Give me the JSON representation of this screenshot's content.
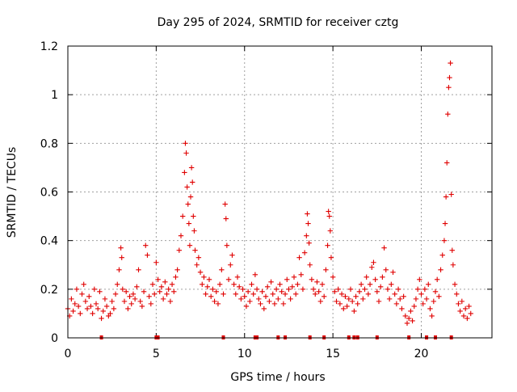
{
  "chart_data": {
    "type": "scatter",
    "title": "Day 295 of 2024, SRMTID for receiver cztg",
    "xlabel": "GPS time / hours",
    "ylabel": "SRMTID / TECUs",
    "xlim": [
      0,
      24
    ],
    "ylim": [
      0,
      1.2
    ],
    "x_ticks": [
      0,
      5,
      10,
      15,
      20
    ],
    "y_ticks": [
      0,
      0.2,
      0.4,
      0.6,
      0.8,
      1,
      1.2
    ],
    "x_tick_labels": [
      "0",
      "5",
      "10",
      "15",
      "20"
    ],
    "y_tick_labels": [
      "0",
      "0.2",
      "0.4",
      "0.6",
      "0.8",
      "1",
      "1.2"
    ],
    "grid": true,
    "marker": "+",
    "color": "#e00000",
    "series": [
      {
        "name": "SRMTID",
        "points": [
          [
            0.0,
            0.12
          ],
          [
            0.1,
            0.09
          ],
          [
            0.2,
            0.16
          ],
          [
            0.3,
            0.11
          ],
          [
            0.4,
            0.14
          ],
          [
            0.5,
            0.2
          ],
          [
            0.6,
            0.13
          ],
          [
            0.7,
            0.1
          ],
          [
            0.8,
            0.18
          ],
          [
            0.9,
            0.22
          ],
          [
            1.0,
            0.15
          ],
          [
            1.1,
            0.12
          ],
          [
            1.2,
            0.17
          ],
          [
            1.3,
            0.13
          ],
          [
            1.4,
            0.1
          ],
          [
            1.5,
            0.2
          ],
          [
            1.6,
            0.14
          ],
          [
            1.7,
            0.12
          ],
          [
            1.8,
            0.19
          ],
          [
            1.9,
            0.08
          ],
          [
            2.0,
            0.11
          ],
          [
            2.1,
            0.16
          ],
          [
            2.2,
            0.13
          ],
          [
            2.3,
            0.09
          ],
          [
            2.4,
            0.1
          ],
          [
            2.5,
            0.15
          ],
          [
            2.6,
            0.12
          ],
          [
            2.7,
            0.18
          ],
          [
            2.8,
            0.22
          ],
          [
            2.9,
            0.28
          ],
          [
            3.0,
            0.37
          ],
          [
            3.05,
            0.33
          ],
          [
            3.1,
            0.2
          ],
          [
            3.2,
            0.15
          ],
          [
            3.3,
            0.19
          ],
          [
            3.4,
            0.12
          ],
          [
            3.5,
            0.17
          ],
          [
            3.6,
            0.14
          ],
          [
            3.7,
            0.18
          ],
          [
            3.8,
            0.16
          ],
          [
            3.9,
            0.21
          ],
          [
            4.0,
            0.28
          ],
          [
            4.1,
            0.15
          ],
          [
            4.2,
            0.13
          ],
          [
            4.3,
            0.19
          ],
          [
            4.4,
            0.38
          ],
          [
            4.5,
            0.34
          ],
          [
            4.6,
            0.17
          ],
          [
            4.7,
            0.14
          ],
          [
            4.8,
            0.22
          ],
          [
            4.9,
            0.18
          ],
          [
            5.0,
            0.31
          ],
          [
            5.1,
            0.24
          ],
          [
            5.2,
            0.19
          ],
          [
            5.3,
            0.21
          ],
          [
            5.4,
            0.16
          ],
          [
            5.5,
            0.23
          ],
          [
            5.6,
            0.18
          ],
          [
            5.7,
            0.2
          ],
          [
            5.8,
            0.15
          ],
          [
            5.9,
            0.22
          ],
          [
            6.0,
            0.19
          ],
          [
            6.1,
            0.25
          ],
          [
            6.2,
            0.28
          ],
          [
            6.3,
            0.36
          ],
          [
            6.4,
            0.42
          ],
          [
            6.5,
            0.5
          ],
          [
            6.6,
            0.68
          ],
          [
            6.65,
            0.8
          ],
          [
            6.7,
            0.76
          ],
          [
            6.75,
            0.62
          ],
          [
            6.8,
            0.55
          ],
          [
            6.85,
            0.47
          ],
          [
            6.9,
            0.38
          ],
          [
            6.95,
            0.58
          ],
          [
            7.0,
            0.7
          ],
          [
            7.05,
            0.64
          ],
          [
            7.1,
            0.5
          ],
          [
            7.15,
            0.44
          ],
          [
            7.2,
            0.36
          ],
          [
            7.3,
            0.3
          ],
          [
            7.4,
            0.33
          ],
          [
            7.5,
            0.27
          ],
          [
            7.6,
            0.22
          ],
          [
            7.7,
            0.25
          ],
          [
            7.8,
            0.18
          ],
          [
            7.9,
            0.21
          ],
          [
            8.0,
            0.24
          ],
          [
            8.1,
            0.17
          ],
          [
            8.2,
            0.2
          ],
          [
            8.3,
            0.15
          ],
          [
            8.4,
            0.19
          ],
          [
            8.5,
            0.14
          ],
          [
            8.6,
            0.22
          ],
          [
            8.7,
            0.28
          ],
          [
            8.8,
            0.18
          ],
          [
            8.9,
            0.55
          ],
          [
            8.95,
            0.49
          ],
          [
            9.0,
            0.38
          ],
          [
            9.1,
            0.24
          ],
          [
            9.2,
            0.3
          ],
          [
            9.3,
            0.34
          ],
          [
            9.4,
            0.22
          ],
          [
            9.5,
            0.18
          ],
          [
            9.6,
            0.25
          ],
          [
            9.7,
            0.21
          ],
          [
            9.8,
            0.16
          ],
          [
            9.9,
            0.2
          ],
          [
            10.0,
            0.17
          ],
          [
            10.1,
            0.13
          ],
          [
            10.2,
            0.19
          ],
          [
            10.3,
            0.15
          ],
          [
            10.4,
            0.22
          ],
          [
            10.5,
            0.18
          ],
          [
            10.6,
            0.26
          ],
          [
            10.7,
            0.2
          ],
          [
            10.8,
            0.16
          ],
          [
            10.9,
            0.14
          ],
          [
            11.0,
            0.19
          ],
          [
            11.1,
            0.12
          ],
          [
            11.2,
            0.17
          ],
          [
            11.3,
            0.21
          ],
          [
            11.4,
            0.15
          ],
          [
            11.5,
            0.23
          ],
          [
            11.6,
            0.18
          ],
          [
            11.7,
            0.14
          ],
          [
            11.8,
            0.2
          ],
          [
            11.9,
            0.16
          ],
          [
            12.0,
            0.22
          ],
          [
            12.1,
            0.19
          ],
          [
            12.2,
            0.14
          ],
          [
            12.3,
            0.18
          ],
          [
            12.4,
            0.24
          ],
          [
            12.5,
            0.2
          ],
          [
            12.6,
            0.16
          ],
          [
            12.7,
            0.21
          ],
          [
            12.8,
            0.25
          ],
          [
            12.9,
            0.18
          ],
          [
            13.0,
            0.22
          ],
          [
            13.1,
            0.33
          ],
          [
            13.2,
            0.26
          ],
          [
            13.3,
            0.2
          ],
          [
            13.4,
            0.35
          ],
          [
            13.5,
            0.42
          ],
          [
            13.55,
            0.51
          ],
          [
            13.6,
            0.47
          ],
          [
            13.65,
            0.39
          ],
          [
            13.7,
            0.3
          ],
          [
            13.8,
            0.24
          ],
          [
            13.9,
            0.2
          ],
          [
            14.0,
            0.18
          ],
          [
            14.1,
            0.23
          ],
          [
            14.2,
            0.19
          ],
          [
            14.3,
            0.15
          ],
          [
            14.4,
            0.22
          ],
          [
            14.5,
            0.17
          ],
          [
            14.6,
            0.28
          ],
          [
            14.7,
            0.38
          ],
          [
            14.75,
            0.52
          ],
          [
            14.8,
            0.5
          ],
          [
            14.85,
            0.44
          ],
          [
            14.9,
            0.33
          ],
          [
            15.0,
            0.25
          ],
          [
            15.1,
            0.19
          ],
          [
            15.2,
            0.15
          ],
          [
            15.3,
            0.2
          ],
          [
            15.4,
            0.14
          ],
          [
            15.5,
            0.18
          ],
          [
            15.6,
            0.12
          ],
          [
            15.7,
            0.17
          ],
          [
            15.8,
            0.13
          ],
          [
            15.9,
            0.16
          ],
          [
            16.0,
            0.2
          ],
          [
            16.1,
            0.15
          ],
          [
            16.2,
            0.11
          ],
          [
            16.3,
            0.17
          ],
          [
            16.4,
            0.14
          ],
          [
            16.5,
            0.19
          ],
          [
            16.6,
            0.22
          ],
          [
            16.7,
            0.16
          ],
          [
            16.8,
            0.2
          ],
          [
            16.9,
            0.25
          ],
          [
            17.0,
            0.18
          ],
          [
            17.1,
            0.22
          ],
          [
            17.2,
            0.29
          ],
          [
            17.3,
            0.31
          ],
          [
            17.4,
            0.24
          ],
          [
            17.5,
            0.19
          ],
          [
            17.6,
            0.15
          ],
          [
            17.7,
            0.21
          ],
          [
            17.8,
            0.25
          ],
          [
            17.9,
            0.37
          ],
          [
            18.0,
            0.28
          ],
          [
            18.1,
            0.2
          ],
          [
            18.2,
            0.16
          ],
          [
            18.3,
            0.22
          ],
          [
            18.4,
            0.27
          ],
          [
            18.5,
            0.18
          ],
          [
            18.6,
            0.14
          ],
          [
            18.7,
            0.2
          ],
          [
            18.8,
            0.16
          ],
          [
            18.9,
            0.12
          ],
          [
            19.0,
            0.17
          ],
          [
            19.1,
            0.09
          ],
          [
            19.2,
            0.06
          ],
          [
            19.3,
            0.08
          ],
          [
            19.4,
            0.11
          ],
          [
            19.5,
            0.07
          ],
          [
            19.6,
            0.13
          ],
          [
            19.7,
            0.16
          ],
          [
            19.8,
            0.2
          ],
          [
            19.9,
            0.24
          ],
          [
            20.0,
            0.18
          ],
          [
            20.1,
            0.14
          ],
          [
            20.2,
            0.2
          ],
          [
            20.3,
            0.16
          ],
          [
            20.4,
            0.22
          ],
          [
            20.5,
            0.12
          ],
          [
            20.6,
            0.09
          ],
          [
            20.7,
            0.15
          ],
          [
            20.8,
            0.19
          ],
          [
            20.9,
            0.24
          ],
          [
            21.0,
            0.17
          ],
          [
            21.1,
            0.28
          ],
          [
            21.2,
            0.34
          ],
          [
            21.3,
            0.4
          ],
          [
            21.35,
            0.47
          ],
          [
            21.4,
            0.58
          ],
          [
            21.45,
            0.72
          ],
          [
            21.5,
            0.92
          ],
          [
            21.55,
            1.03
          ],
          [
            21.6,
            1.07
          ],
          [
            21.65,
            1.13
          ],
          [
            21.7,
            0.59
          ],
          [
            21.75,
            0.36
          ],
          [
            21.8,
            0.3
          ],
          [
            21.9,
            0.22
          ],
          [
            22.0,
            0.18
          ],
          [
            22.1,
            0.14
          ],
          [
            22.2,
            0.11
          ],
          [
            22.3,
            0.15
          ],
          [
            22.4,
            0.09
          ],
          [
            22.5,
            0.12
          ],
          [
            22.6,
            0.08
          ],
          [
            22.7,
            0.13
          ],
          [
            22.8,
            0.1
          ]
        ]
      }
    ],
    "outage_markers": [
      1.9,
      5.0,
      5.1,
      8.8,
      10.6,
      10.7,
      11.9,
      12.3,
      13.7,
      14.5,
      15.9,
      16.2,
      16.4,
      17.5,
      19.3,
      20.3,
      20.8,
      21.7
    ]
  }
}
